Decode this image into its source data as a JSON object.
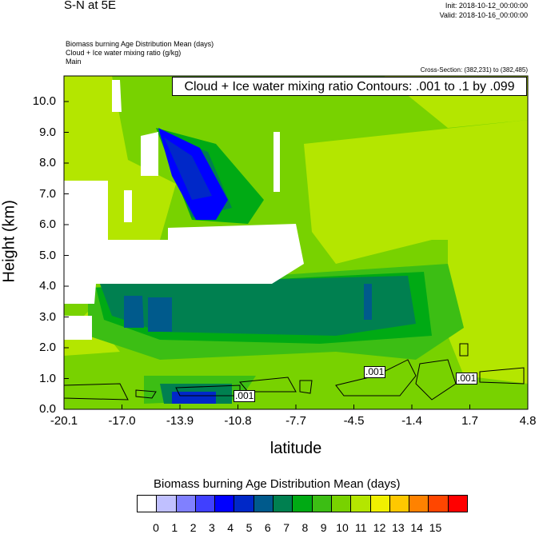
{
  "header": {
    "title": "S-N at 5E",
    "init": "Init: 2018-10-12_00:00:00",
    "valid": "Valid: 2018-10-16_00:00:00",
    "field1": "Biomass burning Age Distribution Mean   (days)",
    "field2": "Cloud + Ice water mixing ratio   (g/kg)",
    "field3": "Main",
    "cross_section": "Cross-Section: (382,231) to (382,485)"
  },
  "contour_info": "Cloud + Ice water mixing ratio Contours: .001 to .1 by .099",
  "axes": {
    "ylabel": "Height (km)",
    "xlabel": "latitude",
    "yticks": [
      "0.0",
      "1.0",
      "2.0",
      "3.0",
      "4.0",
      "5.0",
      "6.0",
      "7.0",
      "8.0",
      "9.0",
      "10.0"
    ],
    "xticks": [
      "-20.1",
      "-17.0",
      "-13.9",
      "-10.8",
      "-7.7",
      "-4.5",
      "-1.4",
      "1.7",
      "4.8"
    ]
  },
  "contour_labels": [
    ".001",
    ".001",
    ".001"
  ],
  "colorbar": {
    "title": "Biomass burning Age Distribution Mean  (days)",
    "labels": [
      "0",
      "1",
      "2",
      "3",
      "4",
      "5",
      "6",
      "7",
      "8",
      "9",
      "10",
      "11",
      "12",
      "13",
      "14",
      "15"
    ],
    "colors": [
      "#ffffff",
      "#c0c0ff",
      "#8080ff",
      "#4040ff",
      "#0000ff",
      "#0028c8",
      "#005a8c",
      "#008050",
      "#00aa14",
      "#3cbe14",
      "#78d200",
      "#b4e600",
      "#f0f000",
      "#ffc800",
      "#ff8200",
      "#ff4600",
      "#ff0000"
    ]
  }
}
